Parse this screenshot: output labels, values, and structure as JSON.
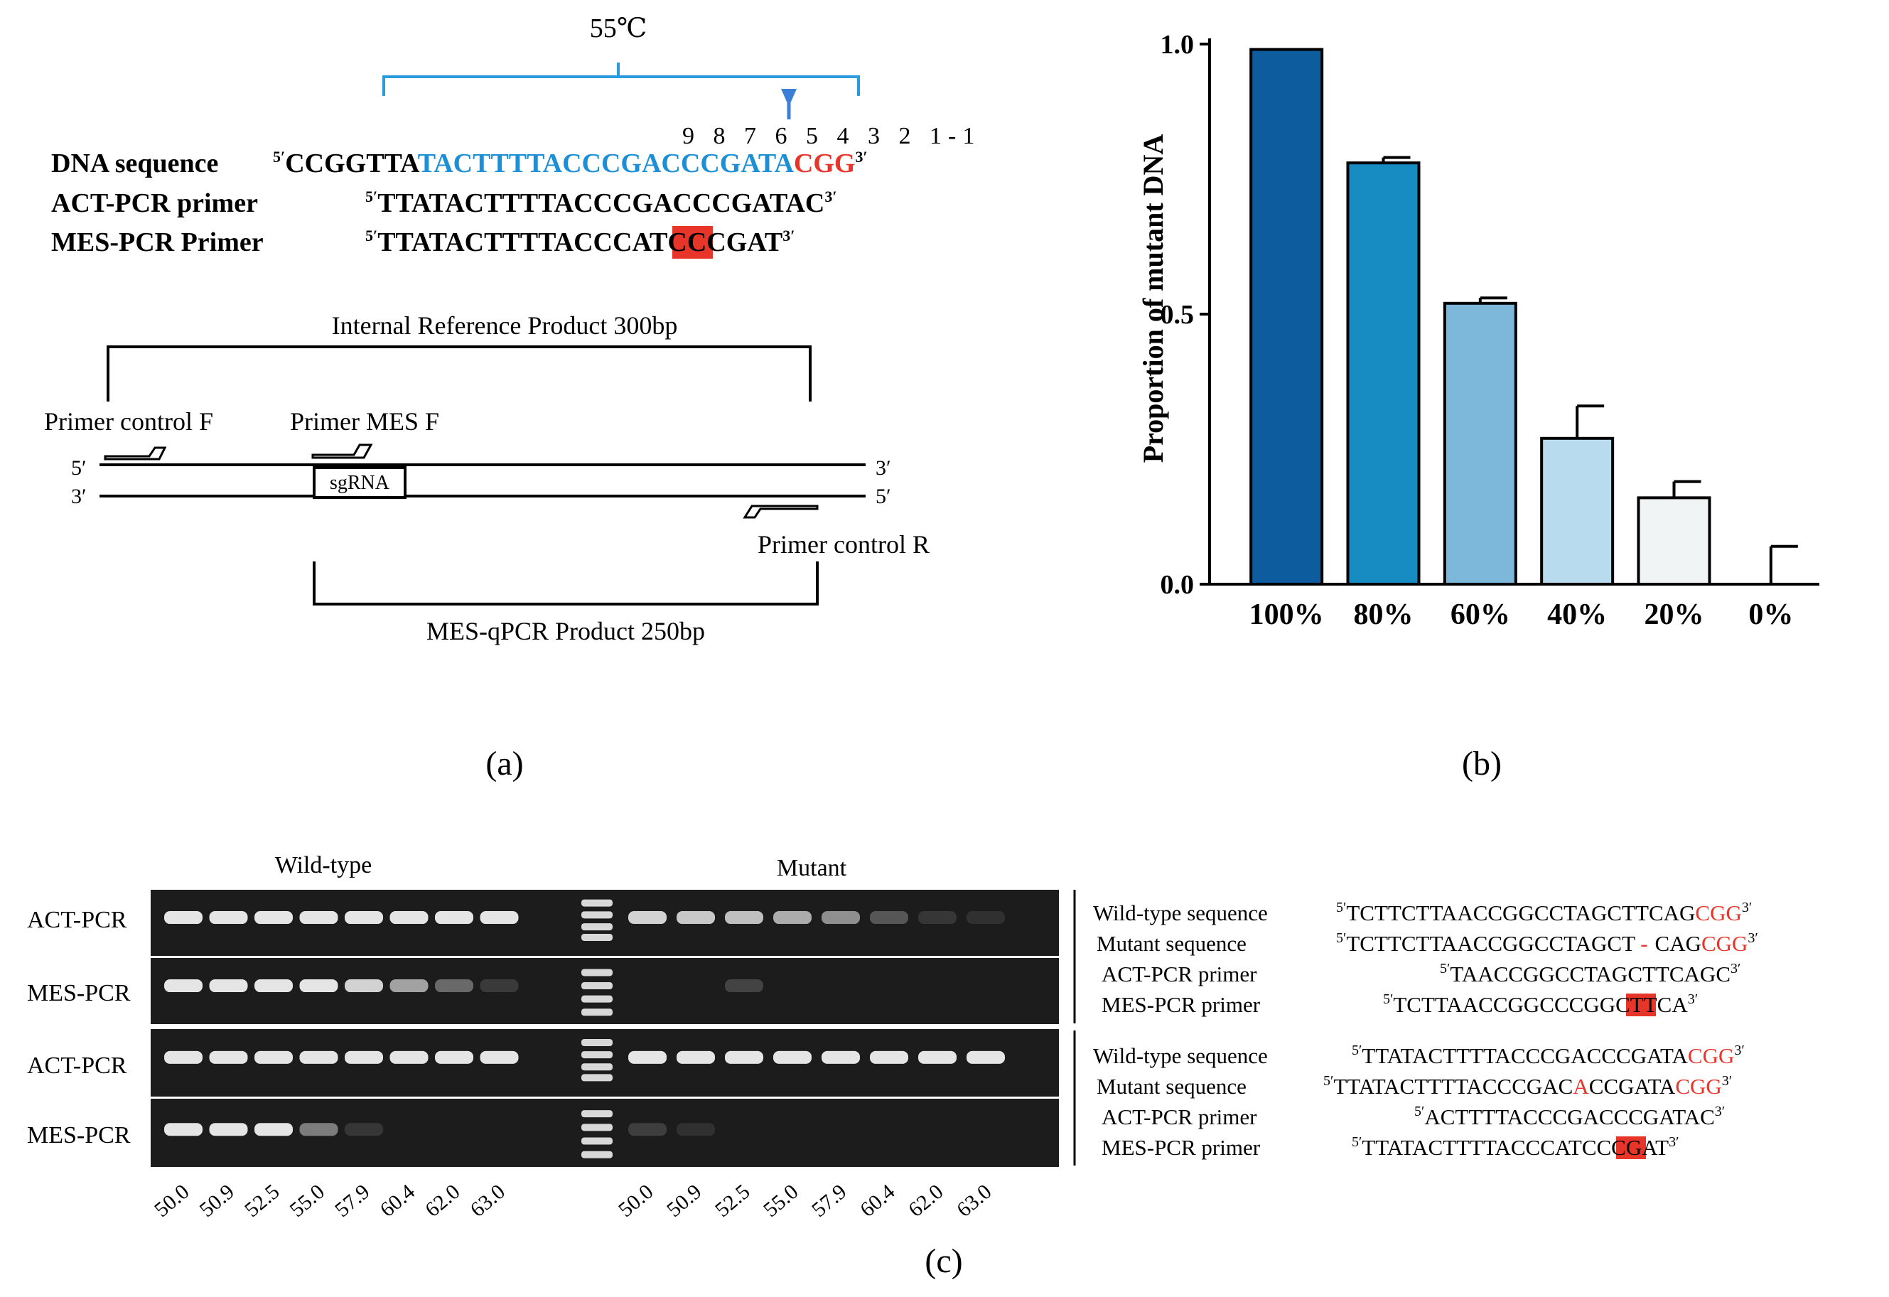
{
  "panel_a": {
    "temperature": "55℃",
    "positions": "9 8 7 6 5 4 3 2 1-1",
    "rows": [
      {
        "label": "DNA sequence",
        "p5": "5′",
        "seq_black": "CCGGTTA",
        "seq_blue": "TACTTTTACCCGACCCGATA",
        "seq_red": "CGG",
        "p3": "3′"
      },
      {
        "label": "ACT-PCR primer",
        "p5": "5′",
        "seq": "TTATACTTTTACCCGACCCGATAC",
        "p3": "3′"
      },
      {
        "label": "MES-PCR Primer",
        "p5": "5′",
        "seq_pre": "TTATACTTTTACCC",
        "seq_hl": "AT",
        "seq_post": "CCCGAT",
        "p3": "3′"
      }
    ],
    "diagram": {
      "internal_ref": "Internal Reference Product 300bp",
      "primer_control_f": "Primer control F",
      "primer_mes_f": "Primer MES F",
      "sgrna": "sgRNA",
      "primer_control_r": "Primer control R",
      "mes_qpcr": "MES-qPCR Product 250bp",
      "strand_top_5": "5′",
      "strand_top_3": "3′",
      "strand_bot_3": "3′",
      "strand_bot_5": "5′"
    },
    "caption": "(a)"
  },
  "chart_data": {
    "type": "bar",
    "ylabel": "Proportion of mutant DNA",
    "xlabel": "",
    "categories": [
      "100%",
      "80%",
      "60%",
      "40%",
      "20%",
      "0%"
    ],
    "values": [
      0.99,
      0.78,
      0.52,
      0.27,
      0.16,
      0.0
    ],
    "errors": [
      0.0,
      0.01,
      0.01,
      0.06,
      0.03,
      0.07
    ],
    "colors": [
      "#0d5c9e",
      "#168cc2",
      "#7db7d9",
      "#b9dbee",
      "#f0f4f4",
      "#ffffff"
    ],
    "ylim": [
      0,
      1.0
    ],
    "yticks": [
      "0.0",
      "0.5",
      "1.0"
    ],
    "caption": "(b)"
  },
  "panel_c": {
    "wild_type": "Wild-type",
    "mutant": "Mutant",
    "row_labels": [
      "ACT-PCR",
      "MES-PCR",
      "ACT-PCR",
      "MES-PCR"
    ],
    "temps": [
      "50.0",
      "50.9",
      "52.5",
      "55.0",
      "57.9",
      "60.4",
      "62.0",
      "63.0",
      "50.0",
      "50.9",
      "52.5",
      "55.0",
      "57.9",
      "60.4",
      "62.0",
      "63.0"
    ],
    "gel_intensity": [
      [
        1,
        1,
        1,
        1,
        1,
        1,
        1,
        1,
        0.9,
        0.85,
        0.8,
        0.7,
        0.55,
        0.25,
        0.08,
        0.05
      ],
      [
        1,
        1,
        1,
        1,
        0.9,
        0.65,
        0.35,
        0.1,
        0,
        0,
        0.15,
        0,
        0,
        0,
        0,
        0
      ],
      [
        1,
        1,
        1,
        1,
        1,
        1,
        1,
        1,
        1,
        1,
        1,
        1,
        1,
        1,
        1,
        1
      ],
      [
        1,
        1,
        1,
        0.45,
        0.08,
        0,
        0,
        0,
        0.12,
        0.05,
        0,
        0,
        0,
        0,
        0,
        0
      ]
    ],
    "seq_block1": {
      "wt_label": "Wild-type sequence",
      "wt_seq": "TCTTCTTAACCGGCCTAGCTTCAG",
      "wt_red": "CGG",
      "mut_label": "Mutant sequence",
      "mut_seq_a": "TCTTCTTAACCGGCCTAGCT",
      "mut_red_dash": "-",
      "mut_seq_b": "CAG",
      "mut_red": "CGG",
      "act_label": "ACT-PCR primer",
      "act_seq": "TAACCGGCCTAGCTTCAGC",
      "mes_label": "MES-PCR primer",
      "mes_pre": "TCTTAACCGGCC",
      "mes_hl": "CG",
      "mes_post": "GCTTCA"
    },
    "seq_block2": {
      "wt_label": "Wild-type sequence",
      "wt_seq": "TTATACTTTTACCCGACCCGATA",
      "wt_red": "CGG",
      "mut_label": "Mutant sequence",
      "mut_seq_a": "TTATACTTTTACCCGAC",
      "mut_red_a": "A",
      "mut_seq_b": "CCGATA",
      "mut_red": "CGG",
      "act_label": "ACT-PCR primer",
      "act_seq": "ACTTTTACCCGACCCGATAC",
      "mes_label": "MES-PCR primer",
      "mes_pre": "TTATACTTTTACCC",
      "mes_hl": "AT",
      "mes_post": "CCCGAT"
    },
    "p5": "5′",
    "p3": "3′",
    "caption": "(c)"
  }
}
